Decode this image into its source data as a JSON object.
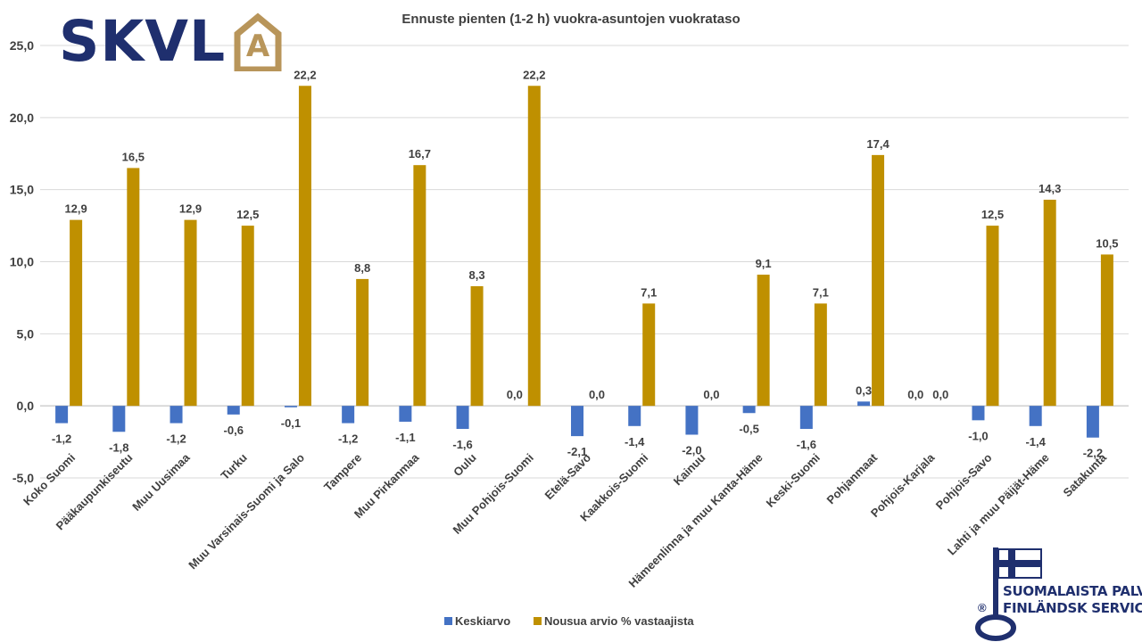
{
  "brand": {
    "logo_text": "SKVL",
    "logo_letter": "A"
  },
  "badge": {
    "line1": "SUOMALAISTA PALVELUA",
    "line2": "FINLÄNDSK SERVICE",
    "registered": "®"
  },
  "colors": {
    "series_1": "#4472c4",
    "series_2": "#bf9000",
    "grid": "#d9d9d9",
    "text": "#404040",
    "brand_blue": "#1f2f6e",
    "brand_gold": "#b8955a"
  },
  "chart_data": {
    "type": "bar",
    "title": "Ennuste pienten (1-2 h) vuokra-asuntojen  vuokrataso",
    "xlabel": "",
    "ylabel": "",
    "ylim": [
      -5,
      25
    ],
    "yticks": [
      "-5,0",
      "0,0",
      "5,0",
      "10,0",
      "15,0",
      "20,0",
      "25,0"
    ],
    "grid": true,
    "legend_position": "bottom",
    "categories": [
      "Koko Suomi",
      "Pääkaupunkiseutu",
      "Muu Uusimaa",
      "Turku",
      "Muu Varsinais-Suomi ja Salo",
      "Tampere",
      "Muu Pirkanmaa",
      "Oulu",
      "Muu Pohjois-Suomi",
      "Etelä-Savo",
      "Kaakkois-Suomi",
      "Kainuu",
      "Hämeenlinna ja muu Kanta-Häme",
      "Keski-Suomi",
      "Pohjanmaat",
      "Pohjois-Karjala",
      "Pohjois-Savo",
      "Lahti ja muu Päijät-Häme",
      "Satakunta"
    ],
    "series": [
      {
        "name": "Keskiarvo",
        "values": [
          -1.2,
          -1.8,
          -1.2,
          -0.6,
          -0.1,
          -1.2,
          -1.1,
          -1.6,
          0.0,
          -2.1,
          -1.4,
          -2.0,
          -0.5,
          -1.6,
          0.3,
          0.0,
          -1.0,
          -1.4,
          -2.2
        ],
        "labels": [
          "-1,2",
          "-1,8",
          "-1,2",
          "-0,6",
          "-0,1",
          "-1,2",
          "-1,1",
          "-1,6",
          "0,0",
          "-2,1",
          "-1,4",
          "-2,0",
          "-0,5",
          "-1,6",
          "0,3",
          "0,0",
          "-1,0",
          "-1,4",
          "-2,2"
        ]
      },
      {
        "name": "Nousua arvio % vastaajista",
        "values": [
          12.9,
          16.5,
          12.9,
          12.5,
          22.2,
          8.8,
          16.7,
          8.3,
          22.2,
          0.0,
          7.1,
          0.0,
          9.1,
          7.1,
          17.4,
          0.0,
          12.5,
          14.3,
          10.5
        ],
        "labels": [
          "12,9",
          "16,5",
          "12,9",
          "12,5",
          "22,2",
          "8,8",
          "16,7",
          "8,3",
          "22,2",
          "0,0",
          "7,1",
          "0,0",
          "9,1",
          "7,1",
          "17,4",
          "0,0",
          "12,5",
          "14,3",
          "10,5"
        ]
      }
    ]
  }
}
